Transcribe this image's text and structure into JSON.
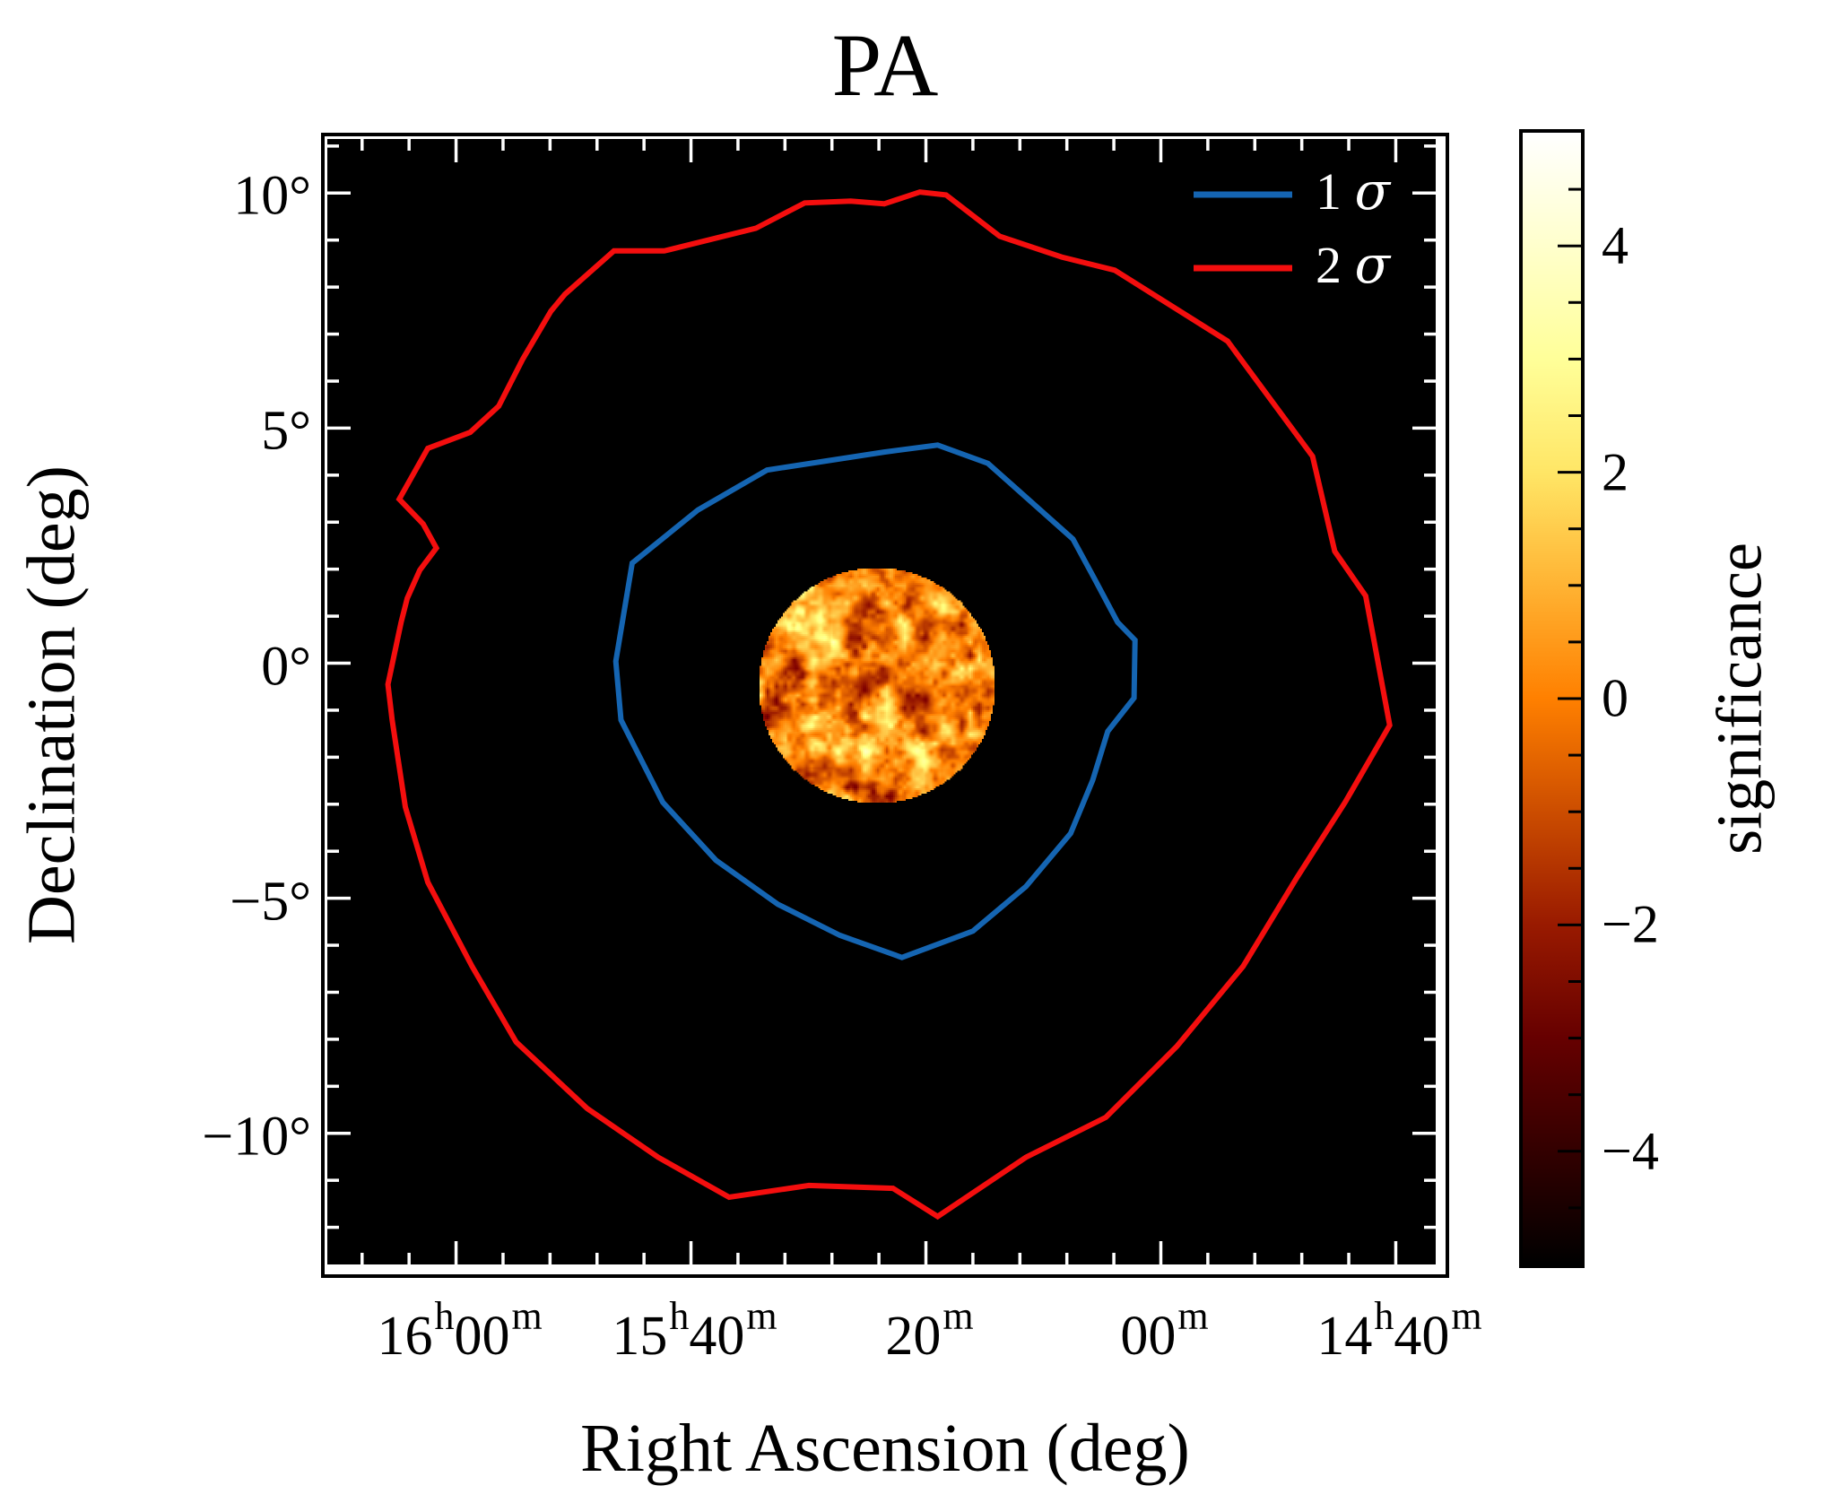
{
  "title": "PA",
  "axes": {
    "xlabel": "Right Ascension (deg)",
    "ylabel": "Declination (deg)",
    "x_lim_left_deg": 12.74,
    "x_lim_right_deg": -10.85,
    "y_lim_top_deg": 11.15,
    "y_lim_bottom_deg": -12.79,
    "x_major_ticks": [
      {
        "value": 10,
        "parts": [
          "16",
          "h",
          "00",
          "m"
        ]
      },
      {
        "value": 5,
        "parts": [
          "15",
          "h",
          "40",
          "m"
        ]
      },
      {
        "value": 0,
        "parts": [
          "20",
          "m"
        ]
      },
      {
        "value": -5,
        "parts": [
          "00",
          "m"
        ]
      },
      {
        "value": -10,
        "parts": [
          "14",
          "h",
          "40",
          "m"
        ]
      }
    ],
    "y_major_ticks": [
      {
        "value": 10,
        "label": "10°"
      },
      {
        "value": 5,
        "label": "5°"
      },
      {
        "value": 0,
        "label": "0°"
      },
      {
        "value": -5,
        "label": "−5°"
      },
      {
        "value": -10,
        "label": "−10°"
      }
    ],
    "minor_step_deg": 1,
    "tick_color": "#ffffff",
    "background_color": "#000000"
  },
  "legend": [
    {
      "prefix": "1 ",
      "symbol": "σ",
      "color": "#1565b2"
    },
    {
      "prefix": "2 ",
      "symbol": "σ",
      "color": "#f40e0e"
    }
  ],
  "colorbar": {
    "label": "significance",
    "min": -5,
    "max": 5,
    "major_ticks": [
      {
        "value": 4,
        "label": "4"
      },
      {
        "value": 2,
        "label": "2"
      },
      {
        "value": 0,
        "label": "0"
      },
      {
        "value": -2,
        "label": "−2"
      },
      {
        "value": -4,
        "label": "−4"
      }
    ],
    "minor_step": 0.5,
    "colormap": "afmhot",
    "stops": [
      {
        "value": -5,
        "color": "#000000"
      },
      {
        "value": -4,
        "color": "#330000"
      },
      {
        "value": -3,
        "color": "#660000"
      },
      {
        "value": -2,
        "color": "#991a00"
      },
      {
        "value": -1,
        "color": "#cc4d00"
      },
      {
        "value": 0,
        "color": "#ff8000"
      },
      {
        "value": 1,
        "color": "#ffb333"
      },
      {
        "value": 2,
        "color": "#ffe666"
      },
      {
        "value": 3,
        "color": "#ffff99"
      },
      {
        "value": 4,
        "color": "#ffffcc"
      },
      {
        "value": 5,
        "color": "#ffffff"
      }
    ]
  },
  "chart_data": {
    "type": "heatmap",
    "subtype": "sky-significance-map-with-contours",
    "title": "PA",
    "xlabel": "Right Ascension (deg)",
    "ylabel": "Declination (deg)",
    "x_axis_unit": "RA offset degrees (positive = east/left of RA 15h20m)",
    "y_axis_unit": "Declination degrees",
    "xlim": [
      12.74,
      -10.85
    ],
    "ylim": [
      11.15,
      -12.79
    ],
    "colorbar_range": [
      -5,
      5
    ],
    "significance_disk": {
      "center_x_deg": 1.04,
      "center_dec_deg": -0.47,
      "radius_deg": 2.53,
      "noise_mean_significance": 0.0,
      "noise_sigma_significance": 1.3
    },
    "contours": [
      {
        "name": "1 σ",
        "color": "#1565b2",
        "vertices_deg": [
          [
            0.89,
            4.49
          ],
          [
            3.38,
            4.11
          ],
          [
            4.85,
            3.26
          ],
          [
            6.25,
            2.13
          ],
          [
            6.6,
            0.04
          ],
          [
            6.49,
            -1.21
          ],
          [
            5.6,
            -2.96
          ],
          [
            4.47,
            -4.19
          ],
          [
            3.15,
            -5.13
          ],
          [
            1.83,
            -5.79
          ],
          [
            0.51,
            -6.26
          ],
          [
            -1.0,
            -5.7
          ],
          [
            -2.13,
            -4.75
          ],
          [
            -3.08,
            -3.62
          ],
          [
            -3.55,
            -2.49
          ],
          [
            -3.87,
            -1.45
          ],
          [
            -4.43,
            -0.74
          ],
          [
            -4.45,
            0.49
          ],
          [
            -4.08,
            0.87
          ],
          [
            -3.58,
            1.81
          ],
          [
            -3.13,
            2.64
          ],
          [
            -1.32,
            4.25
          ],
          [
            -0.25,
            4.64
          ]
        ]
      },
      {
        "name": "2 σ",
        "color": "#f40e0e",
        "vertices_deg": [
          [
            0.89,
            9.77
          ],
          [
            1.6,
            9.83
          ],
          [
            2.58,
            9.79
          ],
          [
            3.62,
            9.25
          ],
          [
            5.57,
            8.77
          ],
          [
            6.64,
            8.77
          ],
          [
            7.68,
            7.85
          ],
          [
            7.98,
            7.49
          ],
          [
            8.58,
            6.47
          ],
          [
            9.09,
            5.47
          ],
          [
            9.7,
            4.91
          ],
          [
            10.6,
            4.57
          ],
          [
            11.21,
            3.49
          ],
          [
            10.7,
            2.96
          ],
          [
            10.42,
            2.45
          ],
          [
            10.77,
            1.98
          ],
          [
            11.04,
            1.38
          ],
          [
            11.17,
            0.87
          ],
          [
            11.45,
            -0.45
          ],
          [
            11.36,
            -1.21
          ],
          [
            11.08,
            -3.06
          ],
          [
            10.6,
            -4.66
          ],
          [
            9.66,
            -6.45
          ],
          [
            8.72,
            -8.06
          ],
          [
            7.21,
            -9.47
          ],
          [
            5.7,
            -10.51
          ],
          [
            4.19,
            -11.36
          ],
          [
            2.49,
            -11.11
          ],
          [
            0.7,
            -11.17
          ],
          [
            -0.25,
            -11.77
          ],
          [
            -2.13,
            -10.51
          ],
          [
            -3.83,
            -9.66
          ],
          [
            -5.34,
            -8.15
          ],
          [
            -6.75,
            -6.45
          ],
          [
            -7.89,
            -4.57
          ],
          [
            -8.92,
            -2.96
          ],
          [
            -9.87,
            -1.32
          ],
          [
            -9.36,
            1.43
          ],
          [
            -8.7,
            2.38
          ],
          [
            -8.23,
            4.4
          ],
          [
            -6.42,
            6.85
          ],
          [
            -4.02,
            8.36
          ],
          [
            -2.89,
            8.64
          ],
          [
            -1.57,
            9.08
          ],
          [
            -0.43,
            9.96
          ],
          [
            0.13,
            10.02
          ]
        ]
      }
    ],
    "legend_entries": [
      "1 σ",
      "2 σ"
    ],
    "legend_position": "upper right",
    "grid": false
  }
}
